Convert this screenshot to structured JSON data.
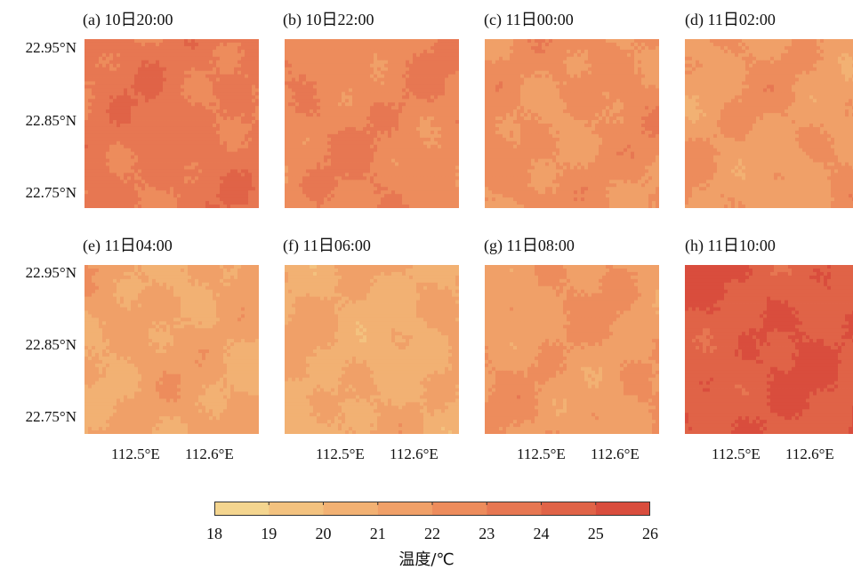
{
  "chart_data": {
    "type": "heatmap",
    "panels": [
      {
        "label": "(a) 10日20:00",
        "mean": 23.4
      },
      {
        "label": "(b) 10日22:00",
        "mean": 22.7
      },
      {
        "label": "(c) 11日00:00",
        "mean": 22.2
      },
      {
        "label": "(d) 11日02:00",
        "mean": 21.8
      },
      {
        "label": "(e) 11日04:00",
        "mean": 21.2
      },
      {
        "label": "(f) 11日06:00",
        "mean": 20.9
      },
      {
        "label": "(g) 11日08:00",
        "mean": 21.8
      },
      {
        "label": "(h) 11日10:00",
        "mean": 24.8
      }
    ],
    "y_ticks": [
      "22.95°N",
      "22.85°N",
      "22.75°N"
    ],
    "x_ticks": [
      "112.5°E",
      "112.6°E"
    ],
    "colorbar": {
      "boundaries": [
        18,
        19,
        20,
        21,
        22,
        23,
        24,
        25,
        26
      ],
      "colors": [
        "#f4d58f",
        "#f3c27f",
        "#f2b173",
        "#f0a068",
        "#ed8c5c",
        "#e77752",
        "#e06347",
        "#d94d3d"
      ],
      "label": "温度/℃"
    }
  }
}
